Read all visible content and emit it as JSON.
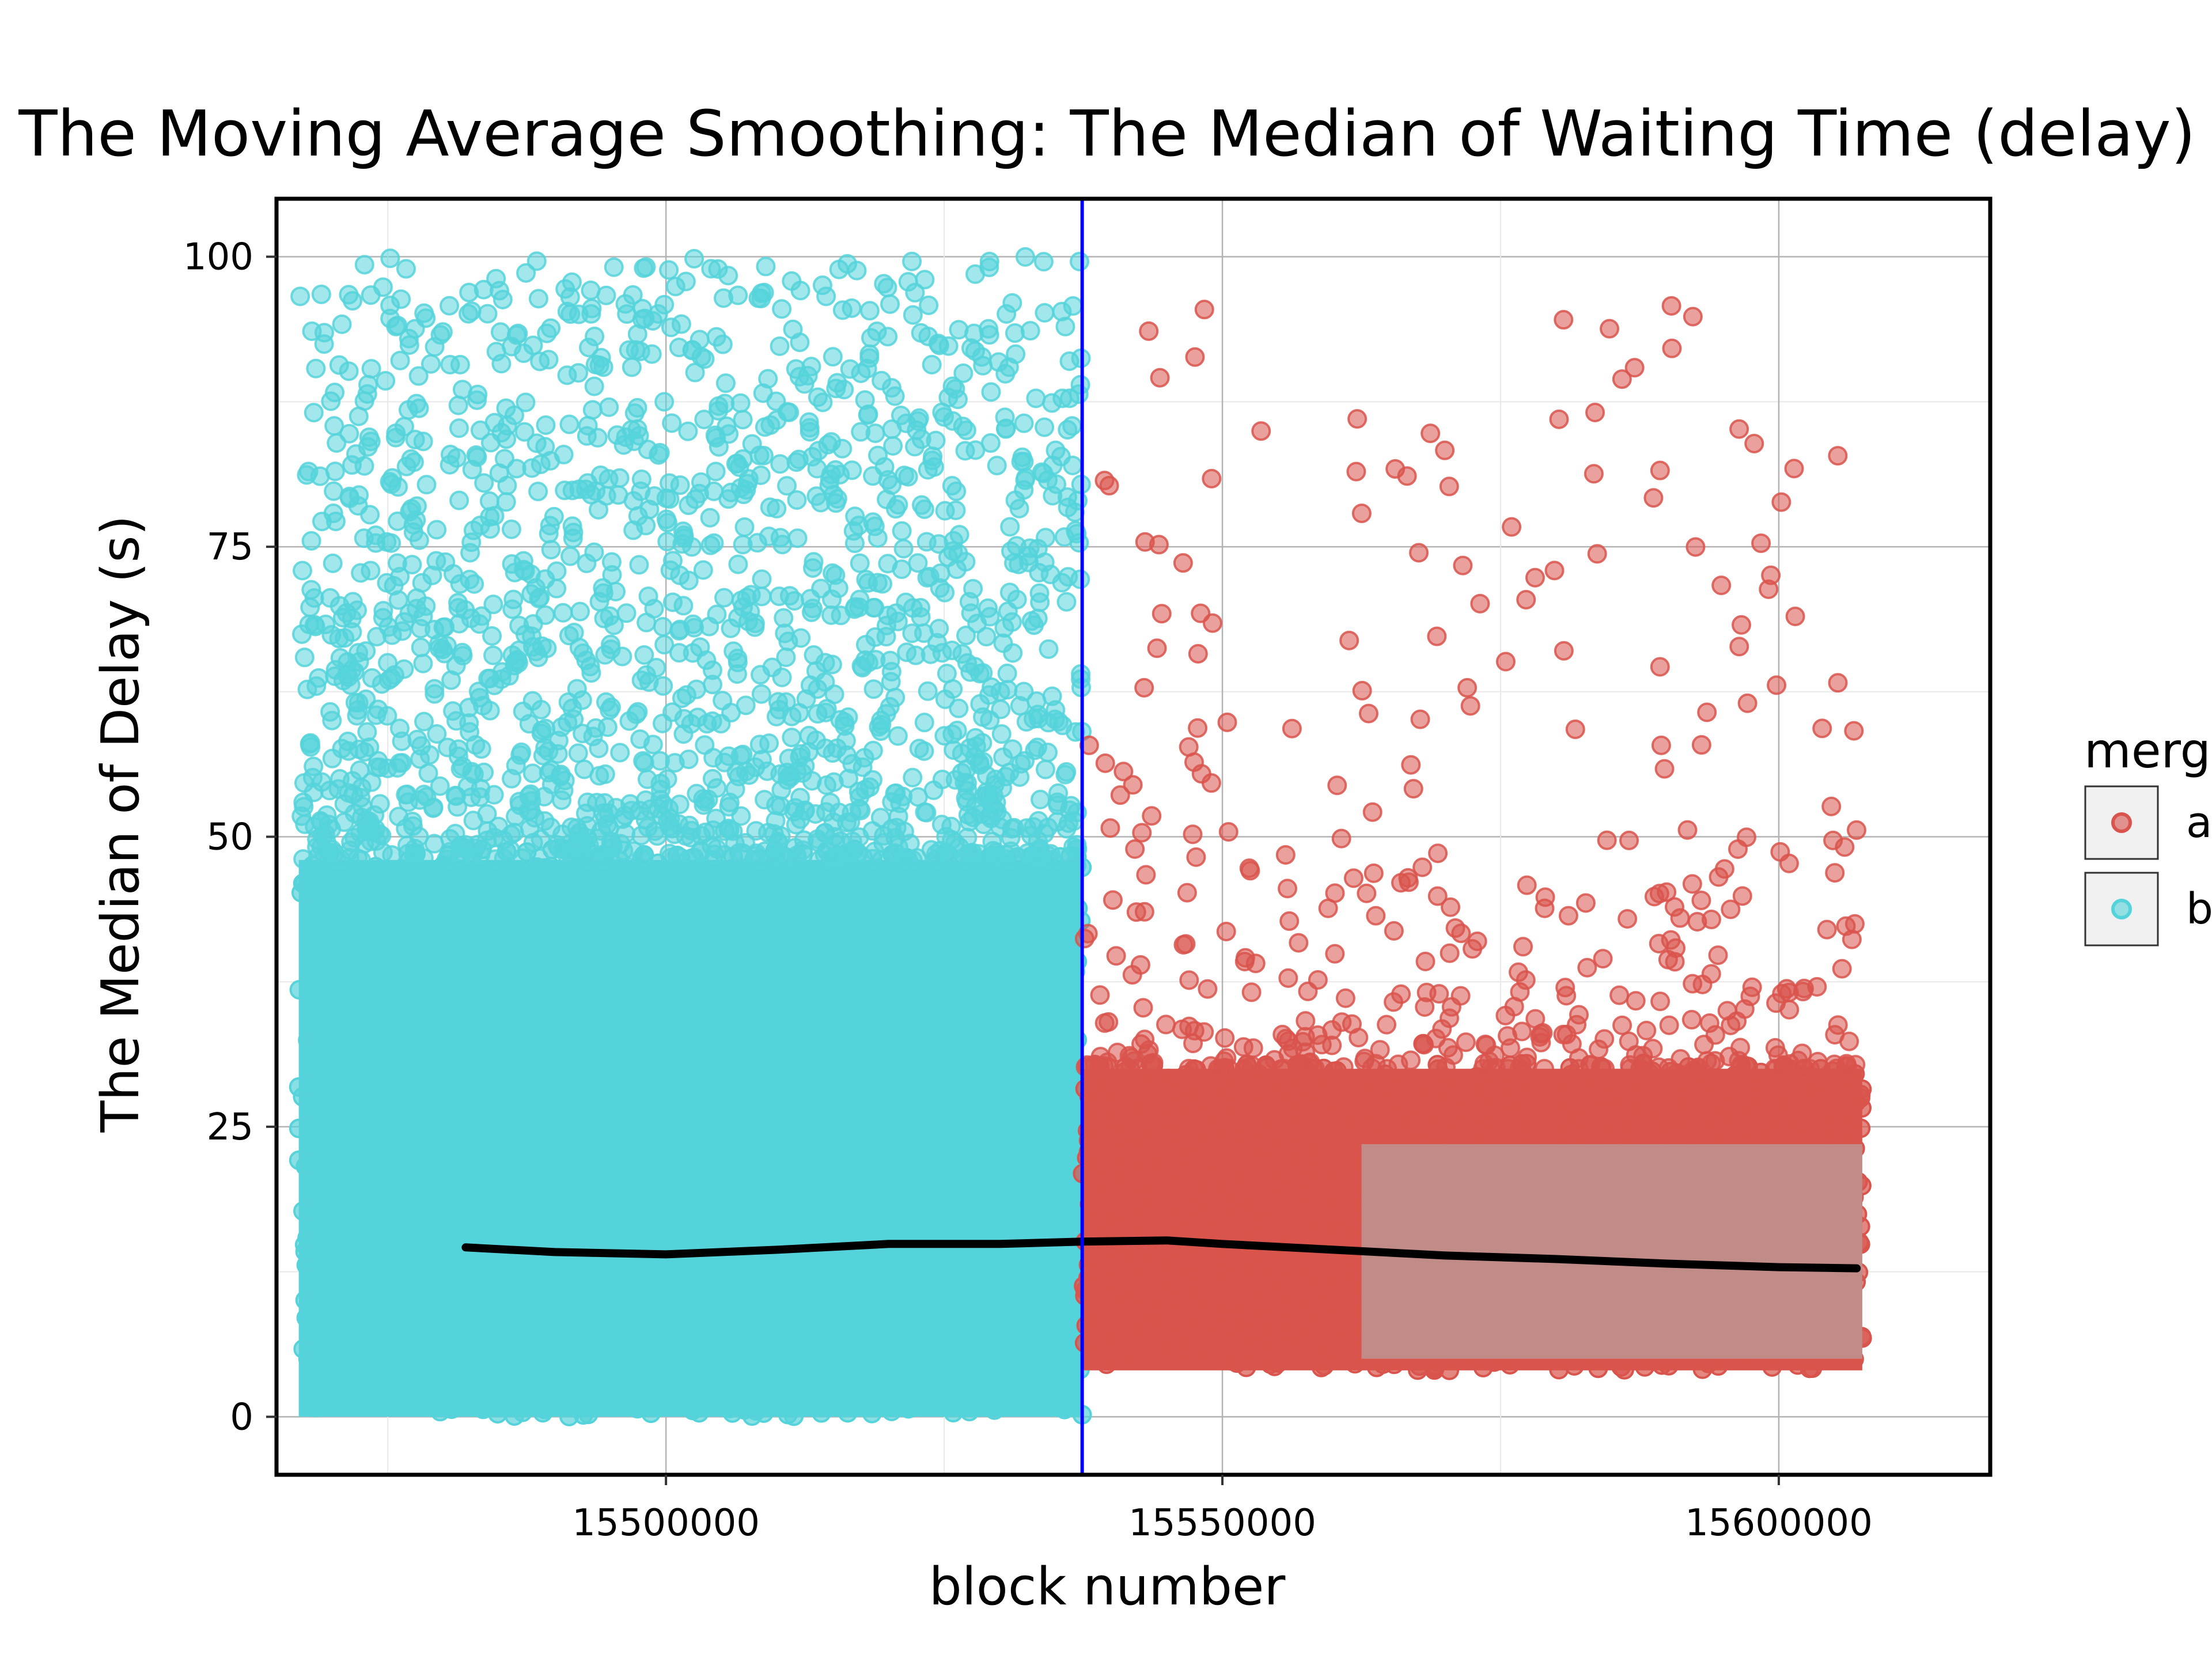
{
  "chart_data": {
    "type": "scatter",
    "title": "The Moving Average Smoothing: The Median of Waiting Time (delay)",
    "xlabel": "block number",
    "ylabel": "The Median of Delay (s)",
    "xlim": [
      15465000,
      15619000
    ],
    "ylim": [
      -5,
      105
    ],
    "x_ticks": [
      15500000,
      15550000,
      15600000
    ],
    "x_tick_labels": [
      "15500000",
      "15550000",
      "15600000"
    ],
    "y_ticks": [
      0,
      25,
      50,
      75,
      100
    ],
    "y_tick_labels": [
      "0",
      "25",
      "50",
      "75",
      "100"
    ],
    "grid": true,
    "legend": {
      "title": "merg",
      "placement": "right",
      "entries": [
        {
          "label": "a",
          "color": "#d9544c"
        },
        {
          "label": "b",
          "color": "#55d3da"
        }
      ]
    },
    "vertical_line": {
      "x": 15537400,
      "color": "#0000ff"
    },
    "series": [
      {
        "name": "b",
        "color": "#55d3da",
        "x_range": [
          15467000,
          15537400
        ],
        "dense_band": [
          0,
          48
        ],
        "sparse_range": [
          48,
          100
        ]
      },
      {
        "name": "a",
        "color": "#d9544c",
        "x_range": [
          15537400,
          15607500
        ],
        "dense_band": [
          4,
          30
        ],
        "sparse_range": [
          30,
          96
        ]
      }
    ],
    "confidence_band": {
      "x_range": [
        15562500,
        15607500
      ],
      "y_range": [
        5,
        23.5
      ],
      "color": "#b0b0b0"
    },
    "moving_average": {
      "color": "#000000",
      "points": [
        [
          15482000,
          14.6
        ],
        [
          15490000,
          14.2
        ],
        [
          15500000,
          14.0
        ],
        [
          15510000,
          14.4
        ],
        [
          15520000,
          14.9
        ],
        [
          15530000,
          14.9
        ],
        [
          15537400,
          15.1
        ],
        [
          15545000,
          15.2
        ],
        [
          15550000,
          14.9
        ],
        [
          15560000,
          14.4
        ],
        [
          15570000,
          13.9
        ],
        [
          15580000,
          13.6
        ],
        [
          15590000,
          13.2
        ],
        [
          15600000,
          12.9
        ],
        [
          15607000,
          12.8
        ]
      ]
    }
  }
}
